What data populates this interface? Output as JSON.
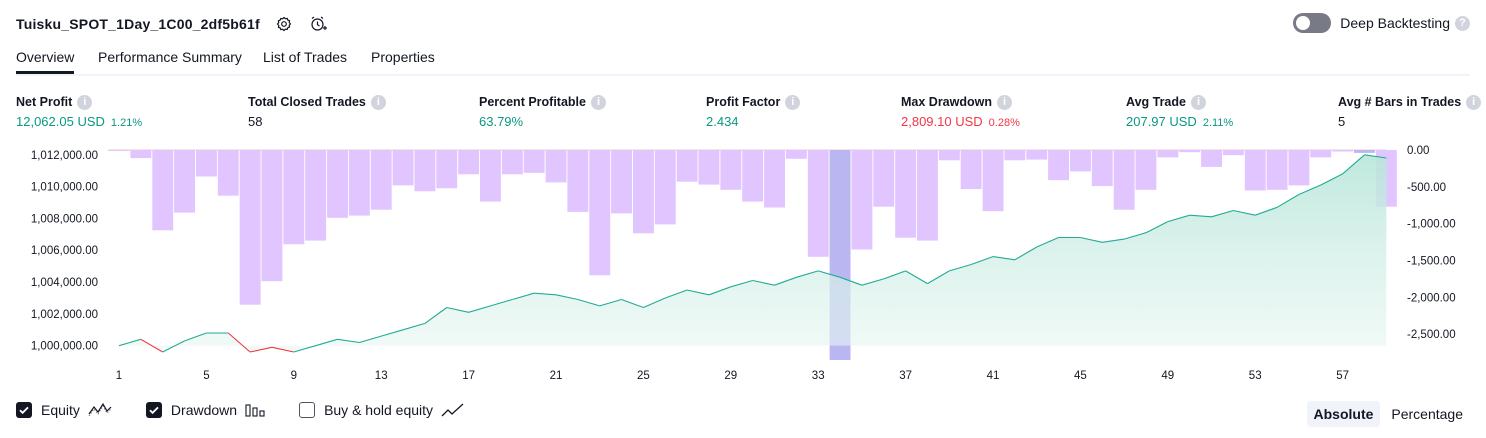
{
  "header": {
    "strategy_name": "Tuisku_SPOT_1Day_1C00_2df5b61f",
    "deep_backtesting_label": "Deep Backtesting",
    "help_glyph": "?"
  },
  "tabs": [
    {
      "label": "Overview",
      "active": true
    },
    {
      "label": "Performance Summary",
      "active": false
    },
    {
      "label": "List of Trades",
      "active": false
    },
    {
      "label": "Properties",
      "active": false
    }
  ],
  "metrics": [
    {
      "label": "Net Profit",
      "value": "12,062.05 USD",
      "pct": "1.21%",
      "tone": "green"
    },
    {
      "label": "Total Closed Trades",
      "value": "58",
      "pct": "",
      "tone": "dark"
    },
    {
      "label": "Percent Profitable",
      "value": "63.79%",
      "pct": "",
      "tone": "green"
    },
    {
      "label": "Profit Factor",
      "value": "2.434",
      "pct": "",
      "tone": "green"
    },
    {
      "label": "Max Drawdown",
      "value": "2,809.10 USD",
      "pct": "0.28%",
      "tone": "red"
    },
    {
      "label": "Avg Trade",
      "value": "207.97 USD",
      "pct": "2.11%",
      "tone": "green"
    },
    {
      "label": "Avg # Bars in Trades",
      "value": "5",
      "pct": "",
      "tone": "dark"
    }
  ],
  "colors": {
    "equity_line": "#22ab94",
    "equity_down": "#f23645",
    "equity_fill": "#d6efe9",
    "drawdown_bar": "#e1c5ff",
    "drawdown_highlight": "#b9b6f2",
    "text_green": "#089981",
    "text_red": "#f23645"
  },
  "chart_data": {
    "type": "line",
    "x": [
      1,
      2,
      3,
      4,
      5,
      6,
      7,
      8,
      9,
      10,
      11,
      12,
      13,
      14,
      15,
      16,
      17,
      18,
      19,
      20,
      21,
      22,
      23,
      24,
      25,
      26,
      27,
      28,
      29,
      30,
      31,
      32,
      33,
      34,
      35,
      36,
      37,
      38,
      39,
      40,
      41,
      42,
      43,
      44,
      45,
      46,
      47,
      48,
      49,
      50,
      51,
      52,
      53,
      54,
      55,
      56,
      57,
      58,
      59
    ],
    "x_ticks": [
      "1",
      "5",
      "9",
      "13",
      "17",
      "21",
      "25",
      "29",
      "33",
      "37",
      "41",
      "45",
      "49",
      "53",
      "57"
    ],
    "left_axis": {
      "ticks": [
        "1,012,000.00",
        "1,010,000.00",
        "1,008,000.00",
        "1,006,000.00",
        "1,004,000.00",
        "1,002,000.00",
        "1,000,000.00"
      ],
      "ylim": [
        999100,
        1012300
      ]
    },
    "right_axis": {
      "ticks": [
        "0.00",
        "-500.00",
        "-1,000.00",
        "-1,500.00",
        "-2,000.00",
        "-2,500.00"
      ],
      "ylim": [
        -2850,
        0
      ]
    },
    "series": [
      {
        "name": "Equity",
        "axis": "left",
        "values": [
          1000000,
          1000400,
          999600,
          1000300,
          1000800,
          1000800,
          999600,
          999900,
          999600,
          1000000,
          1000400,
          1000200,
          1000600,
          1001000,
          1001400,
          1002400,
          1002100,
          1002500,
          1002900,
          1003300,
          1003200,
          1002900,
          1002500,
          1002900,
          1002400,
          1003000,
          1003500,
          1003200,
          1003700,
          1004100,
          1003800,
          1004300,
          1004700,
          1004300,
          1003800,
          1004200,
          1004700,
          1003900,
          1004700,
          1005100,
          1005600,
          1005400,
          1006200,
          1006800,
          1006800,
          1006500,
          1006700,
          1007100,
          1007800,
          1008200,
          1008100,
          1008500,
          1008200,
          1008700,
          1009500,
          1010100,
          1010800,
          1012000,
          1011800
        ]
      },
      {
        "name": "Drawdown",
        "axis": "right",
        "values": [
          -10,
          -110,
          -1090,
          -850,
          -360,
          -620,
          -2100,
          -1780,
          -1280,
          -1230,
          -920,
          -890,
          -810,
          -480,
          -560,
          -520,
          -330,
          -700,
          -330,
          -310,
          -440,
          -840,
          -1700,
          -860,
          -1130,
          -1010,
          -430,
          -470,
          -540,
          -700,
          -780,
          -120,
          -1450,
          -2850,
          -1350,
          -770,
          -1190,
          -1230,
          -140,
          -530,
          -830,
          -140,
          -130,
          -410,
          -290,
          -490,
          -810,
          -540,
          -100,
          -30,
          -230,
          -70,
          -550,
          -540,
          -480,
          -100,
          -20,
          -40,
          -770
        ]
      }
    ],
    "highlight_index": 33,
    "highlight_last_index": 57
  },
  "legend": {
    "items": [
      {
        "label": "Equity",
        "checked": true,
        "icon": "equity-line-icon"
      },
      {
        "label": "Drawdown",
        "checked": true,
        "icon": "bars-icon"
      },
      {
        "label": "Buy & hold equity",
        "checked": false,
        "icon": "trend-line-icon"
      }
    ],
    "modes": [
      {
        "label": "Absolute",
        "selected": true
      },
      {
        "label": "Percentage",
        "selected": false
      }
    ]
  }
}
